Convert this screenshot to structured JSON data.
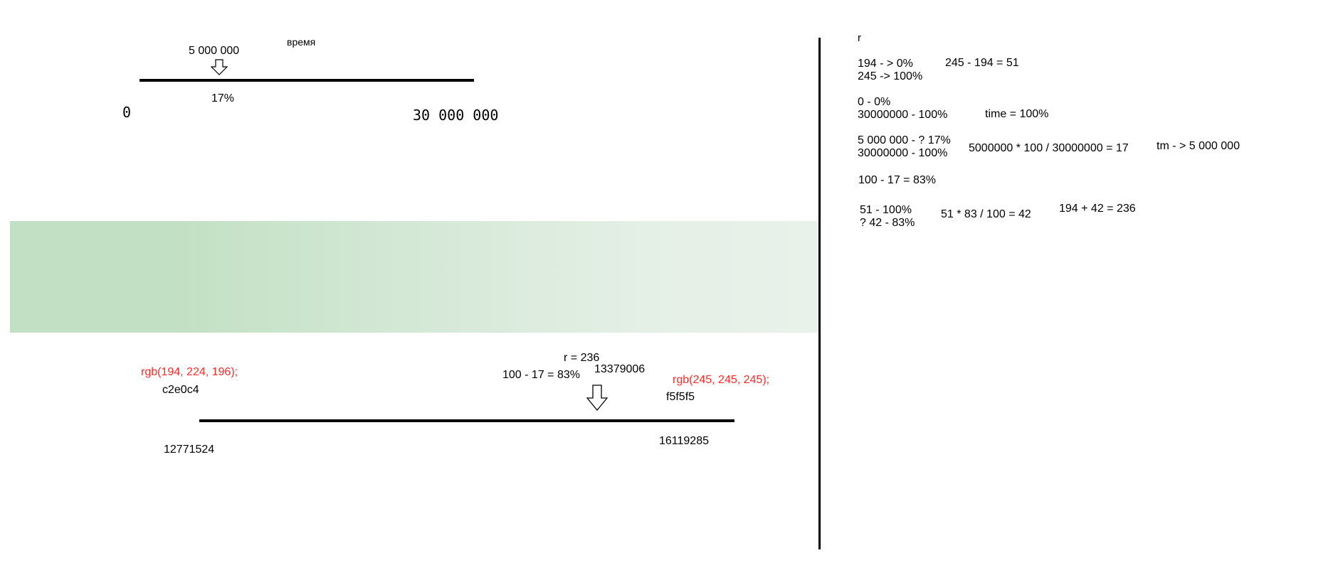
{
  "top_scale": {
    "marker_value": "5 000 000",
    "axis_title": "время",
    "marker_percent": "17%",
    "start_label": "0",
    "end_label": "30 000 000"
  },
  "gradient": {
    "start_color": "#c2e0c4",
    "end_color": "#f5f5f5"
  },
  "bottom_scale": {
    "start_rgb": "rgb(194, 224, 196);",
    "start_hex": "c2e0c4",
    "start_decimal": "12771524",
    "r_result": "r = 236",
    "percent_calc": "100 - 17 = 83%",
    "marker_decimal": "13379006",
    "end_rgb": "rgb(245, 245, 245);",
    "end_hex": "f5f5f5",
    "end_decimal": "16119285"
  },
  "notes": {
    "r_header": "r",
    "line_194": "194 - > 0%",
    "line_245": "245 -> 100%",
    "diff_calc": "245 - 194 = 51",
    "zero_pct": "0 - 0%",
    "thirty_m": "30000000 - 100%",
    "time_100": "time = 100%",
    "five_m_q": "5 000 000 - ? 17%",
    "thirty_m_2": "30000000 - 100%",
    "five_m_calc": "5000000 * 100 / 30000000 = 17",
    "tm_arrow": "tm - > 5 000 000",
    "hundred_minus": "100 - 17 = 83%",
    "fifty_one": "51 - 100%",
    "q42": "? 42  - 83%",
    "calc_42": "51 * 83 / 100 = 42",
    "sum_236": "194 + 42 = 236"
  },
  "colors": {
    "red_text": "#ff2a2a",
    "line": "#000000"
  }
}
